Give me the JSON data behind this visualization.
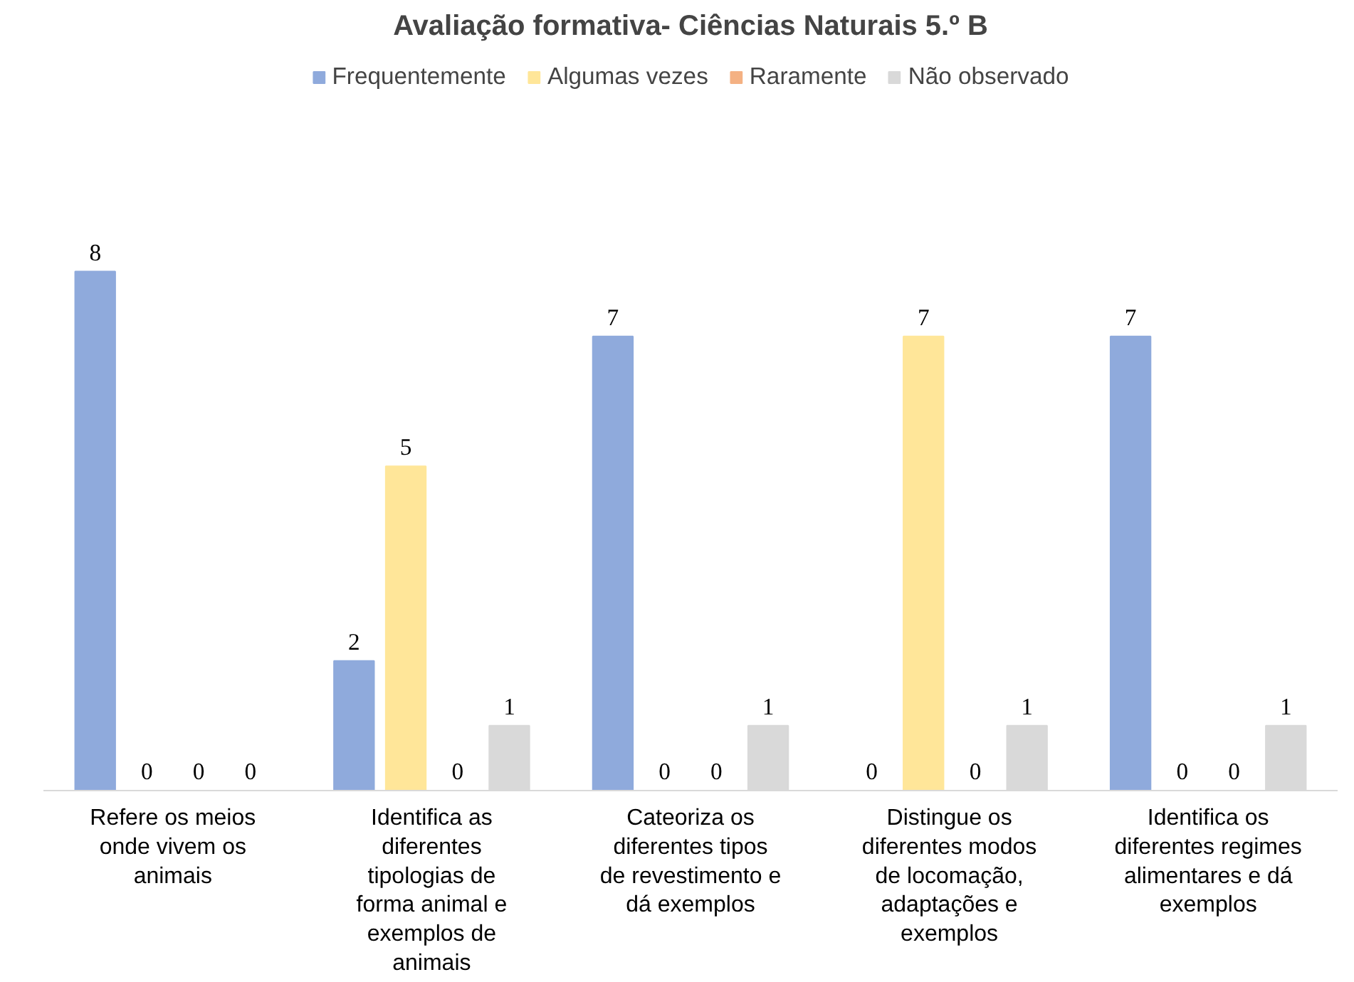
{
  "chart_data": {
    "type": "bar",
    "title": "Avaliação formativa- Ciências Naturais 5.º B",
    "categories": [
      "Refere os meios onde vivem os animais",
      "Identifica as diferentes tipologias de forma animal e exemplos de animais",
      "Cateoriza os diferentes tipos de revestimento e dá exemplos",
      "Distingue os diferentes modos de locomação, adaptações e exemplos",
      "Identifica os diferentes regimes alimentares e dá exemplos"
    ],
    "series": [
      {
        "name": "Frequentemente",
        "color": "#8faadc",
        "values": [
          8,
          2,
          7,
          0,
          7
        ]
      },
      {
        "name": "Algumas vezes",
        "color": "#ffe699",
        "values": [
          0,
          5,
          0,
          7,
          0
        ]
      },
      {
        "name": "Raramente",
        "color": "#f4b183",
        "values": [
          0,
          0,
          0,
          0,
          0
        ]
      },
      {
        "name": "Não observado",
        "color": "#d9d9d9",
        "values": [
          0,
          1,
          1,
          1,
          1
        ]
      }
    ],
    "data_labels": true,
    "legend": "top"
  }
}
